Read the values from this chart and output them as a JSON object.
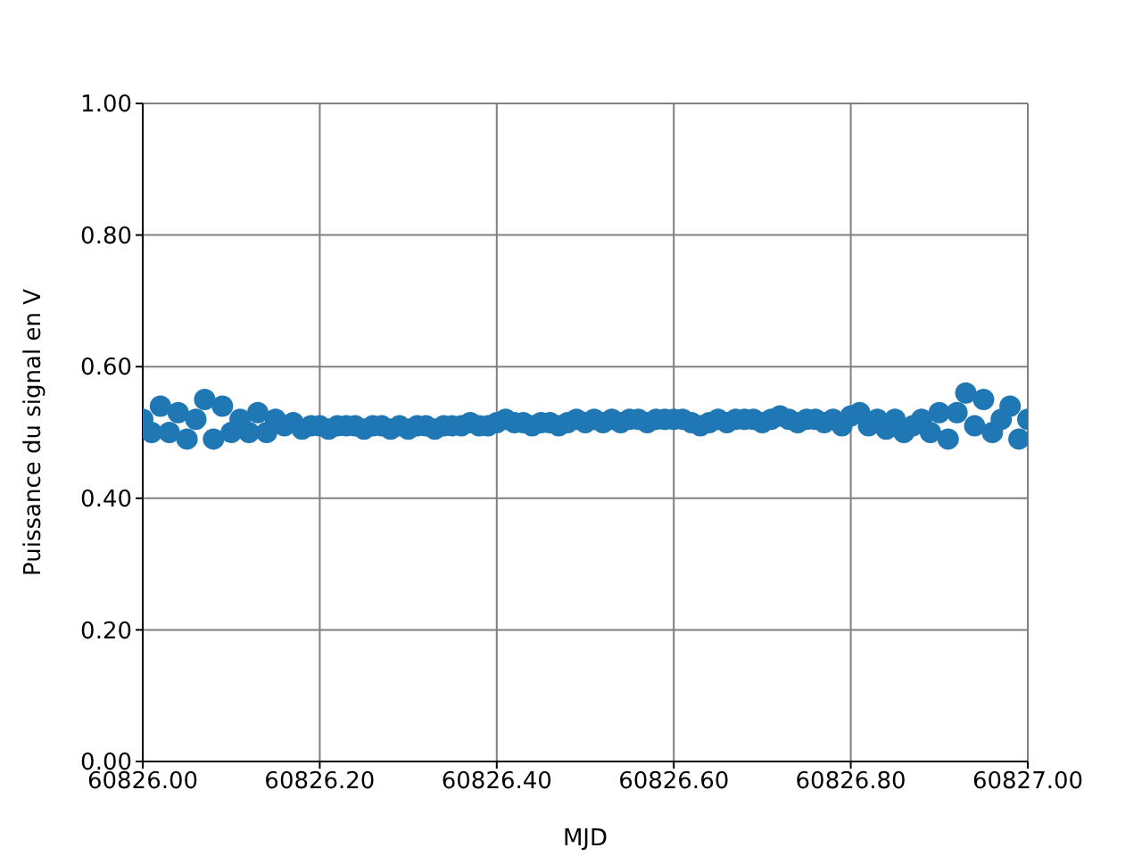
{
  "chart_data": {
    "type": "scatter",
    "xlabel": "MJD",
    "ylabel": "Puissance du signal en V",
    "xlim": [
      60826,
      60827
    ],
    "ylim": [
      0,
      1
    ],
    "xticks": [
      {
        "value": 60826,
        "label": "60826.00"
      },
      {
        "value": 60826.2,
        "label": "60826.20"
      },
      {
        "value": 60826.4,
        "label": "60826.40"
      },
      {
        "value": 60826.6,
        "label": "60826.60"
      },
      {
        "value": 60826.8,
        "label": "60826.80"
      },
      {
        "value": 60827,
        "label": "60827.00"
      }
    ],
    "yticks": [
      {
        "value": 0,
        "label": "0.00"
      },
      {
        "value": 0.2,
        "label": "0.20"
      },
      {
        "value": 0.4,
        "label": "0.40"
      },
      {
        "value": 0.6,
        "label": "0.60"
      },
      {
        "value": 0.8,
        "label": "0.80"
      },
      {
        "value": 1,
        "label": "1.00"
      }
    ],
    "grid": true,
    "marker": "circle",
    "series": [
      {
        "color": "#1f77b4",
        "x": [
          60826.0,
          60826.01,
          60826.02,
          60826.03,
          60826.04,
          60826.05,
          60826.06,
          60826.07,
          60826.08,
          60826.09,
          60826.1,
          60826.11,
          60826.12,
          60826.13,
          60826.14,
          60826.15,
          60826.16,
          60826.17,
          60826.18,
          60826.19,
          60826.2,
          60826.21,
          60826.22,
          60826.23,
          60826.24,
          60826.25,
          60826.26,
          60826.27,
          60826.28,
          60826.29,
          60826.3,
          60826.31,
          60826.32,
          60826.33,
          60826.34,
          60826.35,
          60826.36,
          60826.37,
          60826.38,
          60826.39,
          60826.4,
          60826.41,
          60826.42,
          60826.43,
          60826.44,
          60826.45,
          60826.46,
          60826.47,
          60826.48,
          60826.49,
          60826.5,
          60826.51,
          60826.52,
          60826.53,
          60826.54,
          60826.55,
          60826.56,
          60826.57,
          60826.58,
          60826.59,
          60826.6,
          60826.61,
          60826.62,
          60826.63,
          60826.64,
          60826.65,
          60826.66,
          60826.67,
          60826.68,
          60826.69,
          60826.7,
          60826.71,
          60826.72,
          60826.73,
          60826.74,
          60826.75,
          60826.76,
          60826.77,
          60826.78,
          60826.79,
          60826.8,
          60826.81,
          60826.82,
          60826.83,
          60826.84,
          60826.85,
          60826.86,
          60826.87,
          60826.88,
          60826.89,
          60826.9,
          60826.91,
          60826.92,
          60826.93,
          60826.94,
          60826.95,
          60826.96,
          60826.97,
          60826.98,
          60826.99,
          60827.0
        ],
        "values": [
          0.52,
          0.5,
          0.54,
          0.5,
          0.53,
          0.49,
          0.52,
          0.55,
          0.49,
          0.54,
          0.5,
          0.52,
          0.5,
          0.53,
          0.5,
          0.52,
          0.51,
          0.515,
          0.505,
          0.51,
          0.51,
          0.505,
          0.51,
          0.51,
          0.51,
          0.505,
          0.51,
          0.51,
          0.505,
          0.51,
          0.505,
          0.51,
          0.51,
          0.505,
          0.51,
          0.51,
          0.51,
          0.515,
          0.51,
          0.51,
          0.515,
          0.52,
          0.515,
          0.515,
          0.51,
          0.515,
          0.515,
          0.51,
          0.515,
          0.52,
          0.515,
          0.52,
          0.515,
          0.52,
          0.515,
          0.52,
          0.52,
          0.515,
          0.52,
          0.52,
          0.52,
          0.52,
          0.515,
          0.51,
          0.515,
          0.52,
          0.515,
          0.52,
          0.52,
          0.52,
          0.515,
          0.52,
          0.525,
          0.52,
          0.515,
          0.52,
          0.52,
          0.515,
          0.52,
          0.51,
          0.525,
          0.53,
          0.51,
          0.52,
          0.505,
          0.52,
          0.5,
          0.51,
          0.52,
          0.5,
          0.53,
          0.49,
          0.53,
          0.56,
          0.51,
          0.55,
          0.5,
          0.52,
          0.54,
          0.49,
          0.52
        ]
      }
    ]
  }
}
